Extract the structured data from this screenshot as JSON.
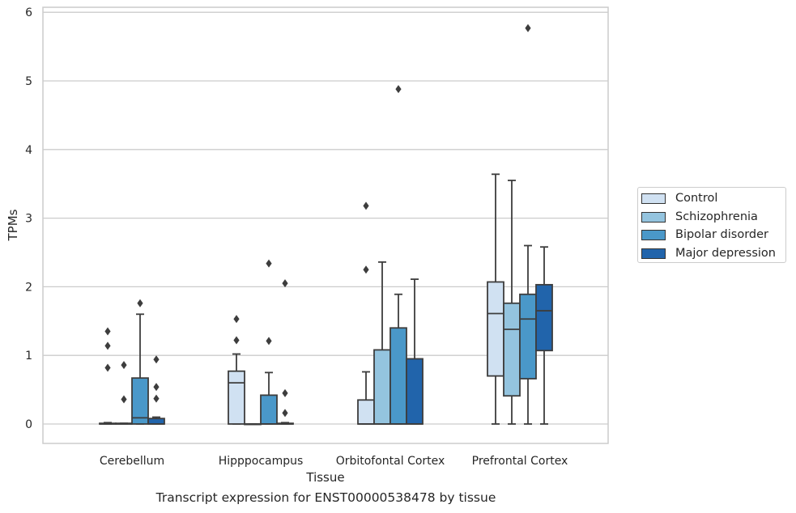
{
  "chart_data": {
    "type": "box",
    "ylabel": "TPMs",
    "xlabel": "Tissue",
    "caption": "Transcript expression for ENST00000538478 by tissue",
    "ylim": [
      -0.28,
      6.07
    ],
    "yticks": [
      0,
      1,
      2,
      3,
      4,
      5,
      6
    ],
    "grid": "horizontal",
    "legend_position": "right",
    "categories": [
      "Cerebellum",
      "Hipppocampus",
      "Orbitofontal Cortex",
      "Prefrontal Cortex"
    ],
    "series": [
      {
        "name": "Control",
        "color": "#d0e1f2",
        "boxes": [
          {
            "min": 0,
            "q1": 0,
            "median": 0,
            "q3": 0.01,
            "max": 0.02,
            "outliers": [
              0.82,
              1.14,
              1.35
            ]
          },
          {
            "min": 0,
            "q1": 0,
            "median": 0.6,
            "q3": 0.77,
            "max": 1.02,
            "outliers": [
              1.22,
              1.53
            ]
          },
          {
            "min": 0,
            "q1": 0,
            "median": 0,
            "q3": 0.35,
            "max": 0.76,
            "outliers": [
              2.25,
              3.18
            ]
          },
          {
            "min": 0,
            "q1": 0.7,
            "median": 1.61,
            "q3": 2.07,
            "max": 3.64,
            "outliers": []
          }
        ]
      },
      {
        "name": "Schizophrenia",
        "color": "#94c4df",
        "boxes": [
          {
            "min": 0,
            "q1": 0,
            "median": 0,
            "q3": 0.01,
            "max": 0.01,
            "outliers": [
              0.36,
              0.86
            ]
          },
          {
            "min": 0,
            "q1": 0,
            "median": 0,
            "q3": 0,
            "max": 0,
            "outliers": []
          },
          {
            "min": 0,
            "q1": 0,
            "median": 0,
            "q3": 1.08,
            "max": 2.36,
            "outliers": []
          },
          {
            "min": 0,
            "q1": 0.41,
            "median": 1.38,
            "q3": 1.76,
            "max": 3.55,
            "outliers": []
          }
        ]
      },
      {
        "name": "Bipolar disorder",
        "color": "#4a98c9",
        "boxes": [
          {
            "min": 0,
            "q1": 0,
            "median": 0.09,
            "q3": 0.67,
            "max": 1.6,
            "outliers": [
              1.76
            ]
          },
          {
            "min": 0,
            "q1": 0,
            "median": 0,
            "q3": 0.42,
            "max": 0.75,
            "outliers": [
              1.21,
              2.34
            ]
          },
          {
            "min": 0,
            "q1": 0,
            "median": 0,
            "q3": 1.4,
            "max": 1.89,
            "outliers": [
              4.88
            ]
          },
          {
            "min": 0,
            "q1": 0.66,
            "median": 1.53,
            "q3": 1.89,
            "max": 2.6,
            "outliers": [
              5.77
            ]
          }
        ]
      },
      {
        "name": "Major depression",
        "color": "#2164ab",
        "boxes": [
          {
            "min": 0,
            "q1": 0,
            "median": 0,
            "q3": 0.08,
            "max": 0.1,
            "outliers": [
              0.37,
              0.54,
              0.94
            ]
          },
          {
            "min": 0,
            "q1": 0,
            "median": 0,
            "q3": 0.01,
            "max": 0.02,
            "outliers": [
              0.16,
              0.45,
              2.05
            ]
          },
          {
            "min": 0,
            "q1": 0,
            "median": 0,
            "q3": 0.95,
            "max": 2.11,
            "outliers": []
          },
          {
            "min": 0,
            "q1": 1.07,
            "median": 1.65,
            "q3": 2.03,
            "max": 2.58,
            "outliers": []
          }
        ]
      }
    ]
  }
}
